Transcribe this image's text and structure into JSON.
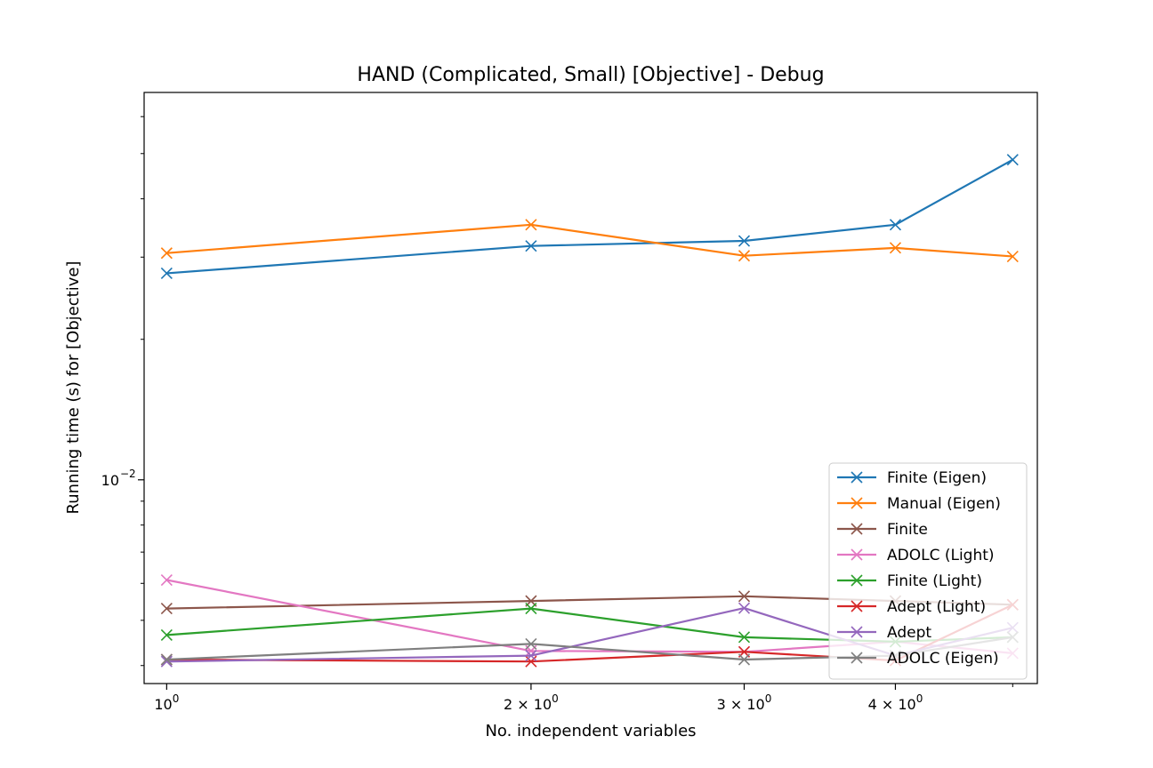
{
  "chart_data": {
    "type": "line",
    "title": "HAND (Complicated, Small) [Objective] - Debug",
    "xlabel": "No. independent variables",
    "ylabel": "Running time (s) for [Objective]",
    "xscale": "log",
    "yscale": "log",
    "xlim": [
      0.958,
      5.24
    ],
    "ylim": [
      0.00366,
      0.0676
    ],
    "x": [
      1,
      2,
      3,
      4,
      5
    ],
    "x_ticks": [
      {
        "value": 1,
        "label": "10",
        "exp": "0",
        "mantissa": ""
      },
      {
        "value": 2,
        "label": "2 × 10",
        "exp": "0",
        "mantissa": "2"
      },
      {
        "value": 3,
        "label": "3 × 10",
        "exp": "0",
        "mantissa": "3"
      },
      {
        "value": 4,
        "label": "4 × 10",
        "exp": "0",
        "mantissa": "4"
      }
    ],
    "y_ticks": [
      {
        "value": 0.01,
        "label": "10",
        "exp": "−2"
      }
    ],
    "grid": false,
    "legend_position": "lower-right",
    "marker": "x",
    "series": [
      {
        "name": "Finite (Eigen)",
        "color": "#1f77b4",
        "values": [
          0.0277,
          0.0317,
          0.0325,
          0.0352,
          0.0485
        ]
      },
      {
        "name": "Manual (Eigen)",
        "color": "#ff7f0e",
        "values": [
          0.0306,
          0.0352,
          0.0302,
          0.0314,
          0.0301
        ]
      },
      {
        "name": "Finite",
        "color": "#8c564b",
        "values": [
          0.0053,
          0.0055,
          0.00563,
          0.0055,
          0.0054
        ]
      },
      {
        "name": "ADOLC (Light)",
        "color": "#e377c2",
        "values": [
          0.0061,
          0.0043,
          0.00428,
          0.0045,
          0.00425
        ]
      },
      {
        "name": "Finite (Light)",
        "color": "#2ca02c",
        "values": [
          0.00465,
          0.0053,
          0.0046,
          0.0045,
          0.0046
        ]
      },
      {
        "name": "Adept (Light)",
        "color": "#d62728",
        "values": [
          0.00412,
          0.00408,
          0.00428,
          0.0041,
          0.0054
        ]
      },
      {
        "name": "Adept",
        "color": "#9467bd",
        "values": [
          0.00408,
          0.0042,
          0.00531,
          0.0042,
          0.00482
        ]
      },
      {
        "name": "ADOLC (Eigen)",
        "color": "#7f7f7f",
        "values": [
          0.00412,
          0.00445,
          0.00412,
          0.0042,
          0.0046
        ]
      }
    ]
  }
}
